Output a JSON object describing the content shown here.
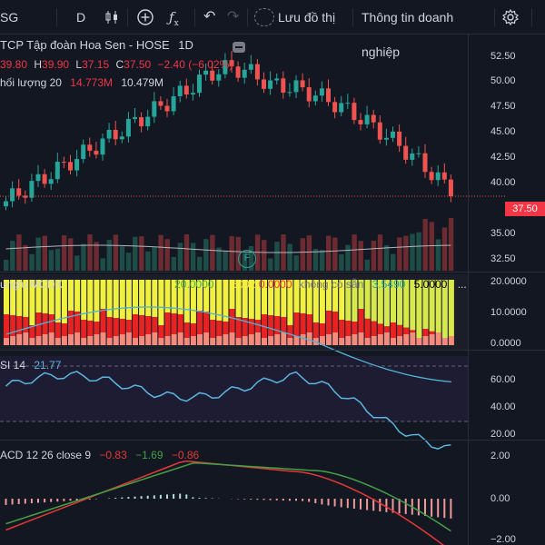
{
  "toolbar": {
    "symbol_fragment": "SG",
    "interval": "D",
    "save_label": "Lưu đồ thị",
    "company_info_label": "Thông tin doanh nghiệp"
  },
  "main": {
    "title": "TCP Tập đoàn Hoa Sen - HOSE",
    "interval": "1D",
    "open": "39.80",
    "high": "39.90",
    "low": "37.15",
    "close": "37.50",
    "change": "−2.40 (−6.02%)",
    "volume_label": "hối lượng 20",
    "volume_value": "14.773M",
    "volume_ma": "10.479M",
    "last_price": "37.50",
    "y_ticks": [
      "52.50",
      "50.00",
      "47.50",
      "45.00",
      "42.50",
      "40.00",
      "35.00",
      "32.50"
    ],
    "event_marker": "F"
  },
  "mcdx": {
    "label": "ungfu MCDX",
    "v1": "20.0000",
    "v2": "7.6002",
    "v3": "0.0000",
    "na_label": "không có sẵn",
    "v4": "3.5490",
    "v5": "5.0000",
    "more": "...",
    "y_ticks": [
      "20.0000",
      "10.0000",
      "0.0000"
    ]
  },
  "rsi": {
    "label": "SI 14",
    "value": "21.77",
    "y_ticks": [
      "60.00",
      "40.00",
      "20.00"
    ]
  },
  "macd": {
    "label": "ACD 12 26 close 9",
    "v1": "−0.83",
    "v2": "−1.69",
    "v3": "−0.86",
    "y_ticks": [
      "2.00",
      "0.00",
      "−2.00"
    ]
  },
  "colors": {
    "up": "#26a69a",
    "down": "#ef5350",
    "background": "#131722",
    "rsi": "#5ab6df",
    "macd": "#e53935",
    "signal": "#43a047"
  }
}
